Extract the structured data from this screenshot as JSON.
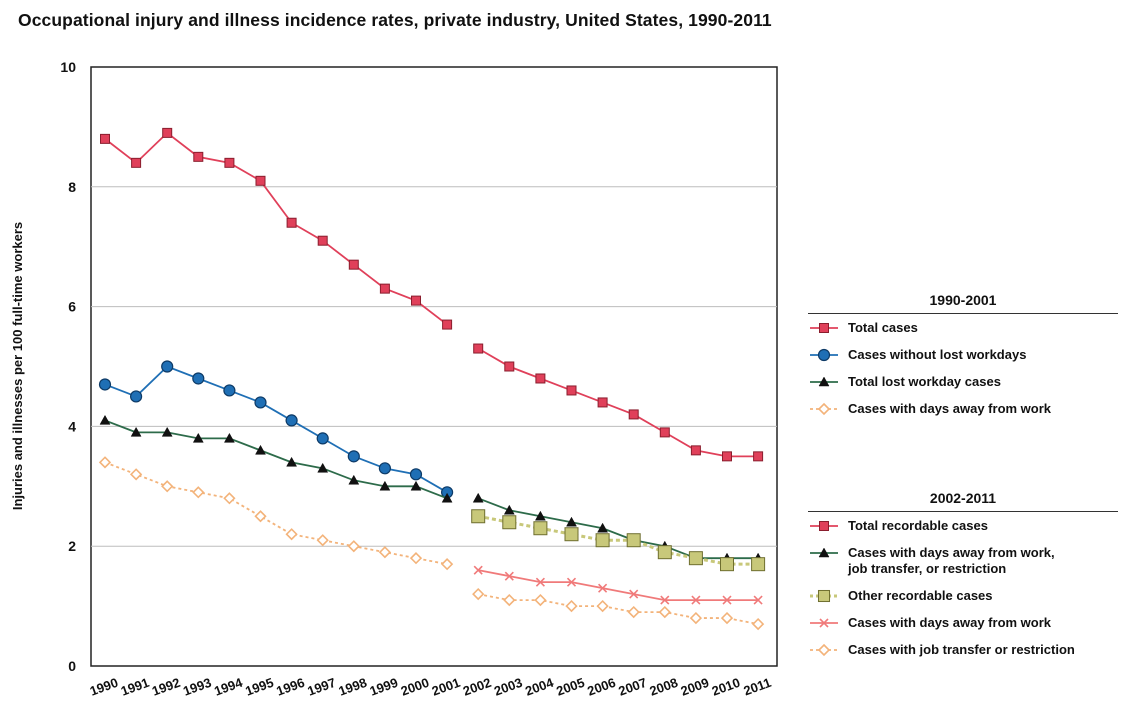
{
  "chart_data": {
    "type": "line",
    "title": "Occupational injury and illness incidence rates, private industry, United States, 1990-2011",
    "ylabel": "Injuries and illnesses per 100 full-time workers",
    "xlabel": "",
    "ylim": [
      0,
      10
    ],
    "yticks": [
      "0",
      "2",
      "4",
      "6",
      "8",
      "10"
    ],
    "grid": true,
    "x": [
      "1990",
      "1991",
      "1992",
      "1993",
      "1994",
      "1995",
      "1996",
      "1997",
      "1998",
      "1999",
      "2000",
      "2001",
      "2002",
      "2003",
      "2004",
      "2005",
      "2006",
      "2007",
      "2008",
      "2009",
      "2010",
      "2011"
    ],
    "legend_groups": [
      {
        "title": "1990-2001",
        "series": [
          {
            "name": "Total cases",
            "color": "#e0405a",
            "marker": "square",
            "values": [
              8.8,
              8.4,
              8.9,
              8.5,
              8.4,
              8.1,
              7.4,
              7.1,
              6.7,
              6.3,
              6.1,
              5.7,
              null,
              null,
              null,
              null,
              null,
              null,
              null,
              null,
              null,
              null
            ]
          },
          {
            "name": "Cases without lost workdays",
            "color": "#1f6fb5",
            "marker": "circle",
            "values": [
              4.7,
              4.5,
              5.0,
              4.8,
              4.6,
              4.4,
              4.1,
              3.8,
              3.5,
              3.3,
              3.2,
              2.9,
              null,
              null,
              null,
              null,
              null,
              null,
              null,
              null,
              null,
              null
            ]
          },
          {
            "name": "Total lost workday cases",
            "color": "#2d6b4a",
            "marker": "triangle",
            "values": [
              4.1,
              3.9,
              3.9,
              3.8,
              3.8,
              3.6,
              3.4,
              3.3,
              3.1,
              3.0,
              3.0,
              2.8,
              null,
              null,
              null,
              null,
              null,
              null,
              null,
              null,
              null,
              null
            ]
          },
          {
            "name": "Cases with days away from work",
            "color": "#f3b37a",
            "marker": "diamond",
            "dashed": true,
            "values": [
              3.4,
              3.2,
              3.0,
              2.9,
              2.8,
              2.5,
              2.2,
              2.1,
              2.0,
              1.9,
              1.8,
              1.7,
              null,
              null,
              null,
              null,
              null,
              null,
              null,
              null,
              null,
              null
            ]
          }
        ]
      },
      {
        "title": "2002-2011",
        "series": [
          {
            "name": "Total recordable cases",
            "color": "#e0405a",
            "marker": "square",
            "values": [
              null,
              null,
              null,
              null,
              null,
              null,
              null,
              null,
              null,
              null,
              null,
              null,
              5.3,
              5.0,
              4.8,
              4.6,
              4.4,
              4.2,
              3.9,
              3.6,
              3.5,
              3.5
            ]
          },
          {
            "name": "Cases with days away from work,",
            "name2": "job transfer, or restriction",
            "color": "#2d6b4a",
            "marker": "triangle",
            "values": [
              null,
              null,
              null,
              null,
              null,
              null,
              null,
              null,
              null,
              null,
              null,
              null,
              2.8,
              2.6,
              2.5,
              2.4,
              2.3,
              2.1,
              2.0,
              1.8,
              1.8,
              1.8
            ]
          },
          {
            "name": "Other recordable cases",
            "color": "#c8c87a",
            "marker": "bigsquare",
            "dashed": true,
            "values": [
              null,
              null,
              null,
              null,
              null,
              null,
              null,
              null,
              null,
              null,
              null,
              null,
              2.5,
              2.4,
              2.3,
              2.2,
              2.1,
              2.1,
              1.9,
              1.8,
              1.7,
              1.7
            ]
          },
          {
            "name": "Cases with days away from work",
            "color": "#f07a7a",
            "marker": "x",
            "values": [
              null,
              null,
              null,
              null,
              null,
              null,
              null,
              null,
              null,
              null,
              null,
              null,
              1.6,
              1.5,
              1.4,
              1.4,
              1.3,
              1.2,
              1.1,
              1.1,
              1.1,
              1.1
            ]
          },
          {
            "name": "Cases with job transfer or restriction",
            "color": "#f3b37a",
            "marker": "diamond",
            "dashed": true,
            "values": [
              null,
              null,
              null,
              null,
              null,
              null,
              null,
              null,
              null,
              null,
              null,
              null,
              1.2,
              1.1,
              1.1,
              1.0,
              1.0,
              0.9,
              0.9,
              0.8,
              0.8,
              0.7
            ]
          }
        ]
      }
    ]
  }
}
